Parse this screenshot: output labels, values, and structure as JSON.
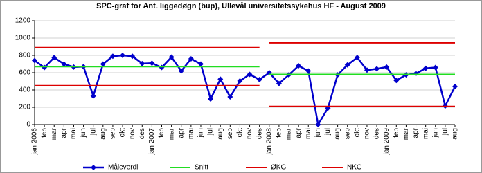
{
  "chart_data": {
    "type": "line",
    "title": "SPC-graf for Ant. liggedøgn (bup), Ullevål universitetssykehus HF - August 2009",
    "categories": [
      "jan 2006",
      "feb",
      "mar",
      "apr",
      "mai",
      "jun",
      "jul",
      "aug",
      "sep",
      "okt",
      "nov",
      "des",
      "jan 2007",
      "feb",
      "mar",
      "apr",
      "mai",
      "jun",
      "jul",
      "aug",
      "sep",
      "okt",
      "nov",
      "des",
      "jan 2008",
      "feb",
      "mar",
      "apr",
      "mai",
      "jun",
      "jul",
      "aug",
      "sep",
      "okt",
      "nov",
      "des",
      "jan 2009",
      "feb",
      "mar",
      "apr",
      "mai",
      "jun",
      "jul",
      "aug"
    ],
    "series": [
      {
        "name": "Måleverdi",
        "color": "#0000cc",
        "marker": "diamond",
        "values": [
          740,
          660,
          775,
          700,
          665,
          670,
          330,
          700,
          790,
          800,
          790,
          705,
          710,
          660,
          780,
          620,
          760,
          700,
          295,
          525,
          320,
          505,
          580,
          520,
          600,
          475,
          575,
          680,
          620,
          0,
          190,
          575,
          690,
          775,
          630,
          645,
          665,
          510,
          575,
          590,
          650,
          660,
          215,
          440
        ]
      },
      {
        "name": "Snitt",
        "color": "#22dd22",
        "values": [
          670,
          670,
          670,
          670,
          670,
          670,
          670,
          670,
          670,
          670,
          670,
          670,
          670,
          670,
          670,
          670,
          670,
          670,
          670,
          670,
          670,
          670,
          670,
          670,
          580,
          580,
          580,
          580,
          580,
          580,
          580,
          580,
          580,
          580,
          580,
          580,
          580,
          580,
          580,
          580,
          580,
          580,
          580,
          580
        ]
      },
      {
        "name": "ØKG",
        "color": "#dd0000",
        "values": [
          890,
          890,
          890,
          890,
          890,
          890,
          890,
          890,
          890,
          890,
          890,
          890,
          890,
          890,
          890,
          890,
          890,
          890,
          890,
          890,
          890,
          890,
          890,
          890,
          945,
          945,
          945,
          945,
          945,
          945,
          945,
          945,
          945,
          945,
          945,
          945,
          945,
          945,
          945,
          945,
          945,
          945,
          945,
          945
        ]
      },
      {
        "name": "NKG",
        "color": "#dd0000",
        "values": [
          450,
          450,
          450,
          450,
          450,
          450,
          450,
          450,
          450,
          450,
          450,
          450,
          450,
          450,
          450,
          450,
          450,
          450,
          450,
          450,
          450,
          450,
          450,
          450,
          210,
          210,
          210,
          210,
          210,
          210,
          210,
          210,
          210,
          210,
          210,
          210,
          210,
          210,
          210,
          210,
          210,
          210,
          210,
          210
        ]
      }
    ],
    "ylim": [
      0,
      1200
    ],
    "yticks": [
      0,
      200,
      400,
      600,
      800,
      1000,
      1200
    ],
    "grid": true
  }
}
